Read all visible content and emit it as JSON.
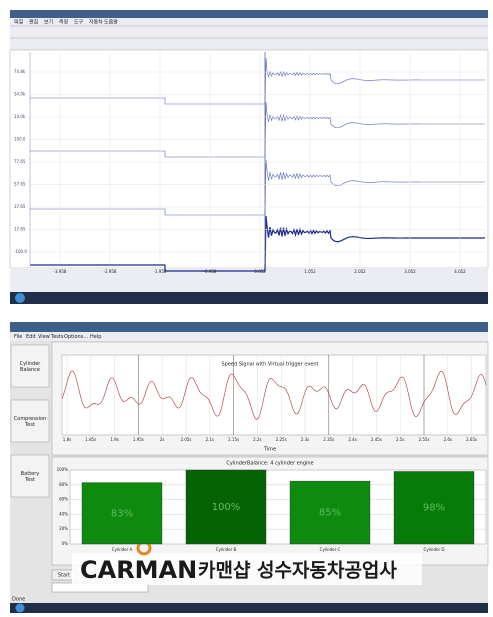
{
  "top_window": {
    "menu": [
      "파일",
      "편집",
      "보기",
      "측정",
      "도구",
      "자동차",
      "도움말"
    ],
    "y_labels": [
      "74.8k",
      "54.0k",
      "14.0k",
      "100.0",
      "77.65",
      "57.65",
      "37.65",
      "17.65",
      "-100.0"
    ],
    "x_labels": [
      "-3.958",
      "-2.958",
      "-1.958",
      "-0.958",
      "0.052",
      "1.052",
      "2.052",
      "3.052",
      "4.052"
    ]
  },
  "bottom_window": {
    "menu": [
      "File",
      "Edit",
      "View",
      "Tests",
      "Options...",
      "Help"
    ],
    "sidebar": [
      "Cylinder Balance",
      "Compression Test",
      "Battery Test"
    ],
    "speed_chart": {
      "title": "Speed Signal with Virtual trigger event",
      "x_label": "Time",
      "xticks": [
        "1.8s",
        "1.85s",
        "1.9s",
        "1.95s",
        "2s",
        "2.05s",
        "2.1s",
        "2.15s",
        "2.2s",
        "2.25s",
        "2.3s",
        "2.35s",
        "2.4s",
        "2.45s",
        "2.5s",
        "2.55s",
        "2.6s",
        "2.65s"
      ]
    },
    "balance_chart": {
      "title": "CylinderBalance: 4 cylinder engine",
      "categories": [
        "Cylinder A",
        "Cylinder B",
        "Cylinder C",
        "Cylinder D"
      ],
      "values": [
        83,
        100,
        85,
        98
      ],
      "value_labels": [
        "83%",
        "100%",
        "85%",
        "98%"
      ],
      "colors": [
        "#0e8a0e",
        "#046404",
        "#0e8a0e",
        "#087a08"
      ],
      "ylim": [
        0,
        100
      ],
      "yticks": [
        {
          "value": 0,
          "label": "0%"
        },
        {
          "value": 20,
          "label": "20%"
        },
        {
          "value": 40,
          "label": "40%"
        },
        {
          "value": 60,
          "label": "60%"
        },
        {
          "value": 80,
          "label": "80%"
        },
        {
          "value": 100,
          "label": "100%"
        }
      ]
    },
    "start_button": "Start",
    "status": "Done"
  },
  "watermark": {
    "brand": "CARMAN",
    "text": "카맨샵 성수자동차공업사"
  }
}
